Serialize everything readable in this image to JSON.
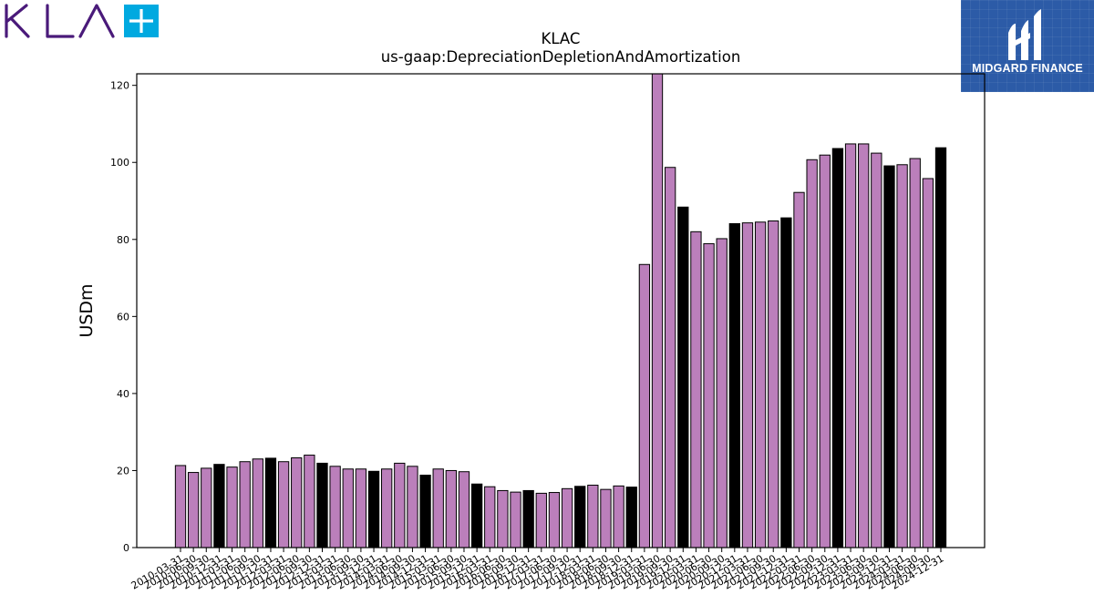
{
  "logos": {
    "kla_text": "KLA",
    "midgard_text": "MIDGARD FINANCE"
  },
  "colors": {
    "kla_purple": "#4a1a7a",
    "kla_plus_blue": "#00a9e0",
    "midgard_blue": "#2c5ba7",
    "bar_purple": "#bb7fbb",
    "bar_black": "#000000"
  },
  "chart_data": {
    "type": "bar",
    "title": "KLAC",
    "subtitle": "us-gaap:DepreciationDepletionAndAmortization",
    "ylabel": "USDm",
    "xlabel": "",
    "ylim": [
      0,
      123
    ],
    "yticks": [
      0,
      20,
      40,
      60,
      80,
      100,
      120
    ],
    "grid": false,
    "categories": [
      "2010-03-31",
      "2010-06-30",
      "2010-09-30",
      "2010-12-31",
      "2011-03-31",
      "2011-06-30",
      "2011-09-30",
      "2011-12-31",
      "2012-03-31",
      "2012-06-30",
      "2012-09-30",
      "2012-12-31",
      "2013-03-31",
      "2013-06-30",
      "2013-09-30",
      "2013-12-31",
      "2014-03-31",
      "2014-06-30",
      "2014-09-30",
      "2014-12-31",
      "2015-03-31",
      "2015-06-30",
      "2015-09-30",
      "2015-12-31",
      "2016-03-31",
      "2016-06-30",
      "2016-09-30",
      "2016-12-31",
      "2017-03-31",
      "2017-06-30",
      "2017-09-30",
      "2017-12-31",
      "2018-03-31",
      "2018-06-30",
      "2018-09-30",
      "2018-12-31",
      "2019-03-31",
      "2019-06-30",
      "2019-09-30",
      "2019-12-31",
      "2020-03-31",
      "2020-06-30",
      "2020-09-30",
      "2020-12-31",
      "2021-03-31",
      "2021-06-30",
      "2021-09-30",
      "2021-12-31",
      "2022-03-31",
      "2022-06-30",
      "2022-09-30",
      "2022-12-31",
      "2023-03-31",
      "2023-06-30",
      "2023-09-30",
      "2023-12-31",
      "2024-03-31",
      "2024-06-30",
      "2024-09-30",
      "2024-12-31"
    ],
    "values": [
      21.3,
      19.5,
      20.6,
      21.6,
      20.9,
      22.3,
      23.0,
      23.2,
      22.3,
      23.3,
      24.0,
      21.9,
      21.1,
      20.4,
      20.4,
      19.8,
      20.4,
      21.9,
      21.1,
      18.8,
      20.4,
      20.0,
      19.7,
      16.5,
      15.8,
      14.8,
      14.4,
      14.8,
      14.1,
      14.3,
      15.3,
      15.9,
      16.2,
      15.1,
      16.0,
      15.7,
      73.5,
      123.0,
      98.7,
      88.4,
      82.0,
      78.9,
      80.2,
      84.1,
      84.3,
      84.5,
      84.8,
      85.6,
      92.2,
      100.7,
      101.9,
      103.6,
      104.8,
      104.8,
      102.4,
      99.1,
      99.4,
      101.0,
      95.8,
      103.8
    ],
    "bar_colors": [
      "#bb7fbb",
      "#bb7fbb",
      "#bb7fbb",
      "#000000",
      "#bb7fbb",
      "#bb7fbb",
      "#bb7fbb",
      "#000000",
      "#bb7fbb",
      "#bb7fbb",
      "#bb7fbb",
      "#000000",
      "#bb7fbb",
      "#bb7fbb",
      "#bb7fbb",
      "#000000",
      "#bb7fbb",
      "#bb7fbb",
      "#bb7fbb",
      "#000000",
      "#bb7fbb",
      "#bb7fbb",
      "#bb7fbb",
      "#000000",
      "#bb7fbb",
      "#bb7fbb",
      "#bb7fbb",
      "#000000",
      "#bb7fbb",
      "#bb7fbb",
      "#bb7fbb",
      "#000000",
      "#bb7fbb",
      "#bb7fbb",
      "#bb7fbb",
      "#000000",
      "#bb7fbb",
      "#bb7fbb",
      "#bb7fbb",
      "#000000",
      "#bb7fbb",
      "#bb7fbb",
      "#bb7fbb",
      "#000000",
      "#bb7fbb",
      "#bb7fbb",
      "#bb7fbb",
      "#000000",
      "#bb7fbb",
      "#bb7fbb",
      "#bb7fbb",
      "#000000",
      "#bb7fbb",
      "#bb7fbb",
      "#bb7fbb",
      "#000000",
      "#bb7fbb",
      "#bb7fbb",
      "#bb7fbb",
      "#000000"
    ]
  }
}
